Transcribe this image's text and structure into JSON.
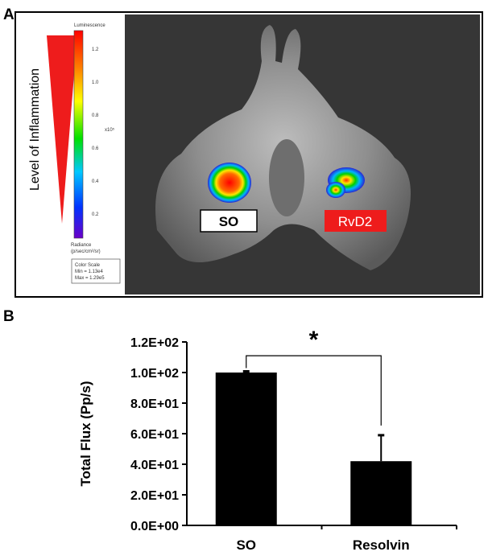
{
  "figure": {
    "panel_a_letter": "A",
    "panel_b_letter": "B"
  },
  "panel_a": {
    "inflammation_label": "Level of Inflammation",
    "colorbar": {
      "title": "Luminescence",
      "ticks": [
        "1.2",
        "1.0",
        "0.8",
        "0.6",
        "0.4",
        "0.2"
      ],
      "exponent": "x10⁵",
      "radiance_label": "Radiance",
      "radiance_units": "(p/sec/cm²/sr)",
      "color_scale_title": "Color Scale",
      "min": "Min = 1.13e4",
      "max": "Max = 1.29e5"
    },
    "label_left": "SO",
    "label_right": "RvD2",
    "label_right_color": "#ee1c1c"
  },
  "chart_data": {
    "type": "bar",
    "categories": [
      "SO",
      "Resolvin"
    ],
    "values": [
      100,
      42
    ],
    "error": [
      0.8,
      17
    ],
    "ylabel": "Total Flux (Pp/s)",
    "ylim": [
      0,
      120
    ],
    "yticks": [
      {
        "value": 0,
        "label": "0.0E+00"
      },
      {
        "value": 20,
        "label": "2.0E+01"
      },
      {
        "value": 40,
        "label": "4.0E+01"
      },
      {
        "value": 60,
        "label": "6.0E+01"
      },
      {
        "value": 80,
        "label": "8.0E+01"
      },
      {
        "value": 100,
        "label": "1.0E+02"
      },
      {
        "value": 120,
        "label": "1.2E+02"
      }
    ],
    "significance": "*",
    "bar_color": "#000000",
    "grid": false
  }
}
